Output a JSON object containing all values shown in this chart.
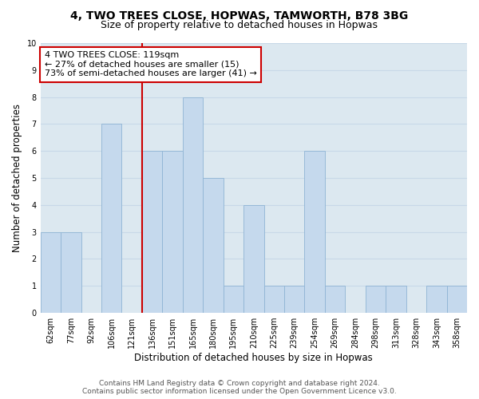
{
  "title": "4, TWO TREES CLOSE, HOPWAS, TAMWORTH, B78 3BG",
  "subtitle": "Size of property relative to detached houses in Hopwas",
  "xlabel": "Distribution of detached houses by size in Hopwas",
  "ylabel": "Number of detached properties",
  "categories": [
    "62sqm",
    "77sqm",
    "92sqm",
    "106sqm",
    "121sqm",
    "136sqm",
    "151sqm",
    "165sqm",
    "180sqm",
    "195sqm",
    "210sqm",
    "225sqm",
    "239sqm",
    "254sqm",
    "269sqm",
    "284sqm",
    "298sqm",
    "313sqm",
    "328sqm",
    "343sqm",
    "358sqm"
  ],
  "values": [
    3,
    3,
    0,
    7,
    0,
    6,
    6,
    8,
    5,
    1,
    4,
    1,
    1,
    6,
    1,
    0,
    1,
    1,
    0,
    1,
    1
  ],
  "bar_color": "#c5d9ed",
  "bar_edge_color": "#8fb4d4",
  "annotation_line1": "4 TWO TREES CLOSE: 119sqm",
  "annotation_line2": "← 27% of detached houses are smaller (15)",
  "annotation_line3": "73% of semi-detached houses are larger (41) →",
  "annotation_box_color": "#ffffff",
  "annotation_border_color": "#cc0000",
  "vline_color": "#cc0000",
  "ylim": [
    0,
    10
  ],
  "yticks": [
    0,
    1,
    2,
    3,
    4,
    5,
    6,
    7,
    8,
    9,
    10
  ],
  "grid_color": "#c8d8e8",
  "background_color": "#dce8f0",
  "footer_line1": "Contains HM Land Registry data © Crown copyright and database right 2024.",
  "footer_line2": "Contains public sector information licensed under the Open Government Licence v3.0.",
  "title_fontsize": 10,
  "subtitle_fontsize": 9,
  "axis_label_fontsize": 8.5,
  "tick_fontsize": 7,
  "annotation_fontsize": 8,
  "footer_fontsize": 6.5
}
